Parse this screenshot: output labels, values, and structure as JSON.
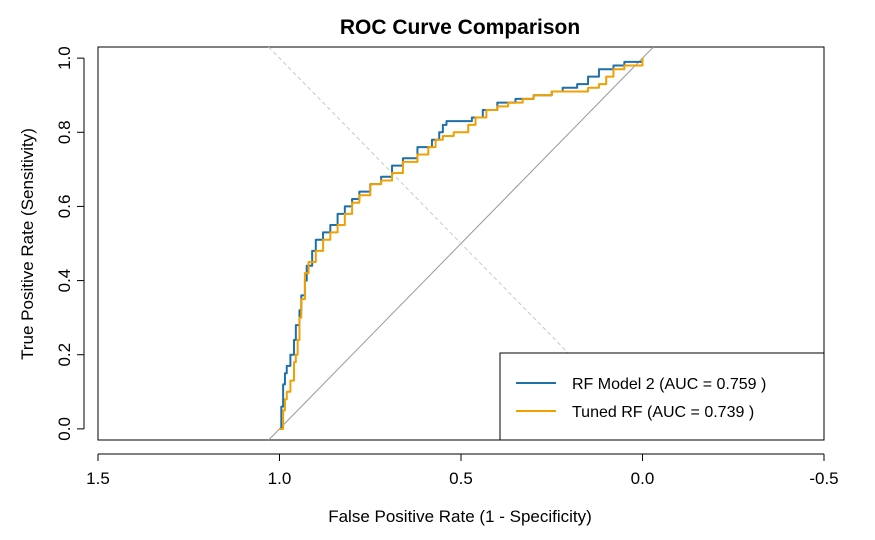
{
  "chart_data": {
    "type": "line",
    "title": "ROC Curve Comparison",
    "xlabel": "False Positive Rate (1 - Specificity)",
    "ylabel": "True Positive Rate (Sensitivity)",
    "x_axis_reversed": true,
    "xlim": [
      1.5,
      -0.5
    ],
    "ylim": [
      -0.03,
      1.03
    ],
    "x_ticks": [
      1.5,
      1.0,
      0.5,
      0.0,
      -0.5
    ],
    "x_tick_labels": [
      "1.5",
      "1.0",
      "0.5",
      "0.0",
      "-0.5"
    ],
    "y_ticks": [
      0.0,
      0.2,
      0.4,
      0.6,
      0.8,
      1.0
    ],
    "y_tick_labels": [
      "0.0",
      "0.2",
      "0.4",
      "0.6",
      "0.8",
      "1.0"
    ],
    "grid": false,
    "legend_position": "bottom-right",
    "reference_lines": [
      {
        "name": "diagonal",
        "style": "solid",
        "color": "#999999"
      },
      {
        "name": "anti-diagonal",
        "style": "dashed",
        "color": "#c8c8c8"
      }
    ],
    "series": [
      {
        "name": "RF Model 2",
        "legend_label": "RF Model 2 (AUC = 0.759 )",
        "auc": 0.759,
        "color": "#1f6fa8",
        "x": [
          1.0,
          0.995,
          0.99,
          0.985,
          0.98,
          0.97,
          0.96,
          0.955,
          0.945,
          0.94,
          0.93,
          0.925,
          0.91,
          0.9,
          0.88,
          0.86,
          0.84,
          0.82,
          0.8,
          0.78,
          0.75,
          0.72,
          0.69,
          0.66,
          0.62,
          0.58,
          0.56,
          0.55,
          0.54,
          0.52,
          0.5,
          0.47,
          0.44,
          0.4,
          0.35,
          0.3,
          0.25,
          0.22,
          0.18,
          0.15,
          0.12,
          0.1,
          0.08,
          0.05,
          0.03,
          0.0
        ],
        "y": [
          0.0,
          0.06,
          0.12,
          0.15,
          0.17,
          0.2,
          0.24,
          0.28,
          0.32,
          0.36,
          0.4,
          0.44,
          0.48,
          0.51,
          0.53,
          0.55,
          0.58,
          0.6,
          0.62,
          0.64,
          0.66,
          0.68,
          0.71,
          0.73,
          0.76,
          0.78,
          0.8,
          0.82,
          0.83,
          0.83,
          0.83,
          0.84,
          0.86,
          0.88,
          0.89,
          0.9,
          0.91,
          0.92,
          0.93,
          0.95,
          0.97,
          0.97,
          0.98,
          0.99,
          0.99,
          1.0
        ]
      },
      {
        "name": "Tuned RF",
        "legend_label": "Tuned RF (AUC = 0.739 )",
        "auc": 0.739,
        "color": "#f0a000",
        "x": [
          1.0,
          0.99,
          0.985,
          0.98,
          0.97,
          0.96,
          0.955,
          0.95,
          0.945,
          0.94,
          0.93,
          0.92,
          0.9,
          0.88,
          0.86,
          0.84,
          0.82,
          0.8,
          0.78,
          0.75,
          0.72,
          0.69,
          0.66,
          0.62,
          0.59,
          0.57,
          0.55,
          0.52,
          0.5,
          0.48,
          0.46,
          0.43,
          0.4,
          0.37,
          0.33,
          0.3,
          0.25,
          0.2,
          0.15,
          0.12,
          0.1,
          0.08,
          0.05,
          0.0
        ],
        "y": [
          0.0,
          0.05,
          0.08,
          0.1,
          0.13,
          0.18,
          0.2,
          0.24,
          0.3,
          0.35,
          0.42,
          0.45,
          0.48,
          0.51,
          0.53,
          0.55,
          0.58,
          0.61,
          0.63,
          0.66,
          0.67,
          0.69,
          0.72,
          0.74,
          0.76,
          0.78,
          0.79,
          0.8,
          0.8,
          0.82,
          0.84,
          0.86,
          0.87,
          0.88,
          0.89,
          0.9,
          0.91,
          0.91,
          0.92,
          0.93,
          0.95,
          0.97,
          0.98,
          1.0
        ]
      }
    ]
  }
}
